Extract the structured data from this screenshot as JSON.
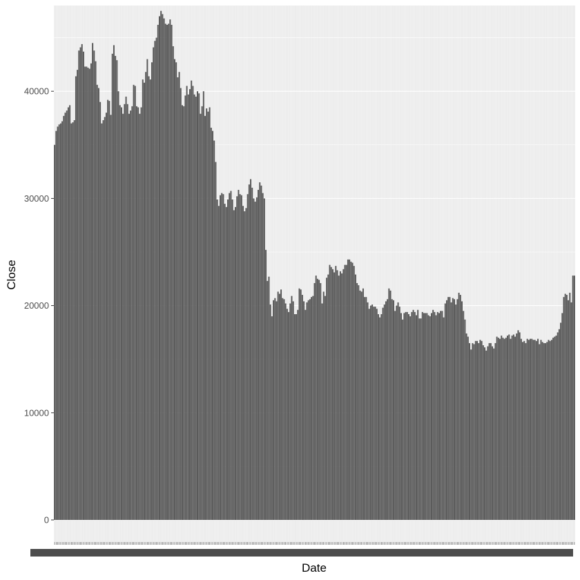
{
  "chart_data": {
    "type": "bar",
    "title": "",
    "xlabel": "Date",
    "ylabel": "Close",
    "ylim": [
      0,
      48000
    ],
    "yticks": [
      0,
      10000,
      20000,
      30000,
      40000
    ],
    "ytick_labels": [
      "0",
      "10000",
      "20000",
      "30000",
      "40000"
    ],
    "grid": true,
    "legend": "none",
    "bar_color": "#595959",
    "panel_background": "#ebebeb",
    "gridline_color": "#ffffff",
    "x_tick_labels_note": "overplotted date labels (illegible)",
    "values": [
      35000,
      36300,
      36700,
      36900,
      37000,
      37200,
      37700,
      38000,
      38200,
      38500,
      38700,
      37000,
      37100,
      37300,
      41400,
      42000,
      43800,
      44100,
      44400,
      43700,
      42300,
      42300,
      42200,
      42100,
      42600,
      44500,
      43800,
      42800,
      40600,
      40300,
      39000,
      37000,
      37300,
      37600,
      38000,
      39200,
      39100,
      37800,
      43500,
      44300,
      43300,
      42900,
      40000,
      38700,
      38500,
      37900,
      38800,
      39500,
      38800,
      37900,
      38200,
      38600,
      40600,
      40500,
      38600,
      38500,
      37900,
      38500,
      41100,
      40800,
      41800,
      43000,
      41400,
      41100,
      42700,
      44100,
      44700,
      45000,
      46200,
      47000,
      47500,
      47200,
      46800,
      46300,
      46200,
      46300,
      46700,
      46200,
      44200,
      43000,
      42700,
      41300,
      41800,
      40300,
      38700,
      38600,
      39600,
      40500,
      39700,
      40200,
      41000,
      40500,
      39700,
      39500,
      40000,
      39800,
      37900,
      38600,
      40000,
      37700,
      38400,
      38100,
      38500,
      36600,
      36300,
      35400,
      33400,
      29900,
      29300,
      30300,
      30500,
      30400,
      29500,
      29200,
      29900,
      30500,
      30700,
      29900,
      28900,
      29200,
      30200,
      30800,
      30400,
      30300,
      29300,
      28800,
      29100,
      30400,
      31300,
      31800,
      31000,
      30000,
      29700,
      30100,
      30800,
      31500,
      31200,
      30500,
      30000,
      25200,
      22300,
      22700,
      20100,
      19000,
      20500,
      20700,
      20400,
      21300,
      21100,
      21500,
      20700,
      20600,
      20200,
      19700,
      19400,
      20200,
      20900,
      20400,
      19200,
      19200,
      19600,
      21600,
      21500,
      21000,
      20400,
      19600,
      20300,
      20500,
      20600,
      20800,
      20900,
      22100,
      22800,
      22500,
      22400,
      22100,
      20200,
      21300,
      20900,
      22600,
      22900,
      23800,
      23600,
      23400,
      23100,
      23700,
      23300,
      22800,
      23200,
      23000,
      23400,
      23800,
      23800,
      24300,
      24300,
      24100,
      24000,
      23700,
      22900,
      22100,
      21900,
      21400,
      21300,
      21600,
      20800,
      20800,
      20300,
      19700,
      20000,
      20100,
      19900,
      19900,
      19700,
      19200,
      18900,
      19200,
      19800,
      20100,
      20400,
      20600,
      21600,
      21400,
      20600,
      20500,
      19500,
      20000,
      20300,
      19900,
      19300,
      18700,
      19300,
      19400,
      19400,
      19200,
      19000,
      19400,
      19600,
      19400,
      19100,
      19600,
      18800,
      18800,
      19400,
      19300,
      19300,
      19300,
      19100,
      19000,
      19300,
      19600,
      19400,
      19100,
      19400,
      19300,
      19500,
      19500,
      18900,
      20200,
      20500,
      20800,
      20800,
      20300,
      20700,
      20600,
      20100,
      20600,
      21200,
      21000,
      20400,
      19500,
      18700,
      17400,
      17100,
      16500,
      15900,
      16500,
      16400,
      16700,
      16700,
      16500,
      16800,
      16700,
      16300,
      16100,
      15800,
      16200,
      16500,
      16500,
      16200,
      16000,
      16500,
      17100,
      17000,
      16900,
      17200,
      17000,
      16900,
      17000,
      17200,
      17300,
      16900,
      17200,
      17300,
      17100,
      17400,
      17700,
      17500,
      16900,
      16600,
      16700,
      16500,
      16900,
      16800,
      16900,
      16900,
      16800,
      16800,
      16700,
      16900,
      16400,
      16800,
      16600,
      16500,
      16500,
      16600,
      16800,
      16700,
      16800,
      17000,
      17100,
      17200,
      17500,
      17800,
      18400,
      19300,
      20800,
      21100,
      21000,
      20500,
      21200,
      20300,
      22800,
      22800
    ]
  }
}
